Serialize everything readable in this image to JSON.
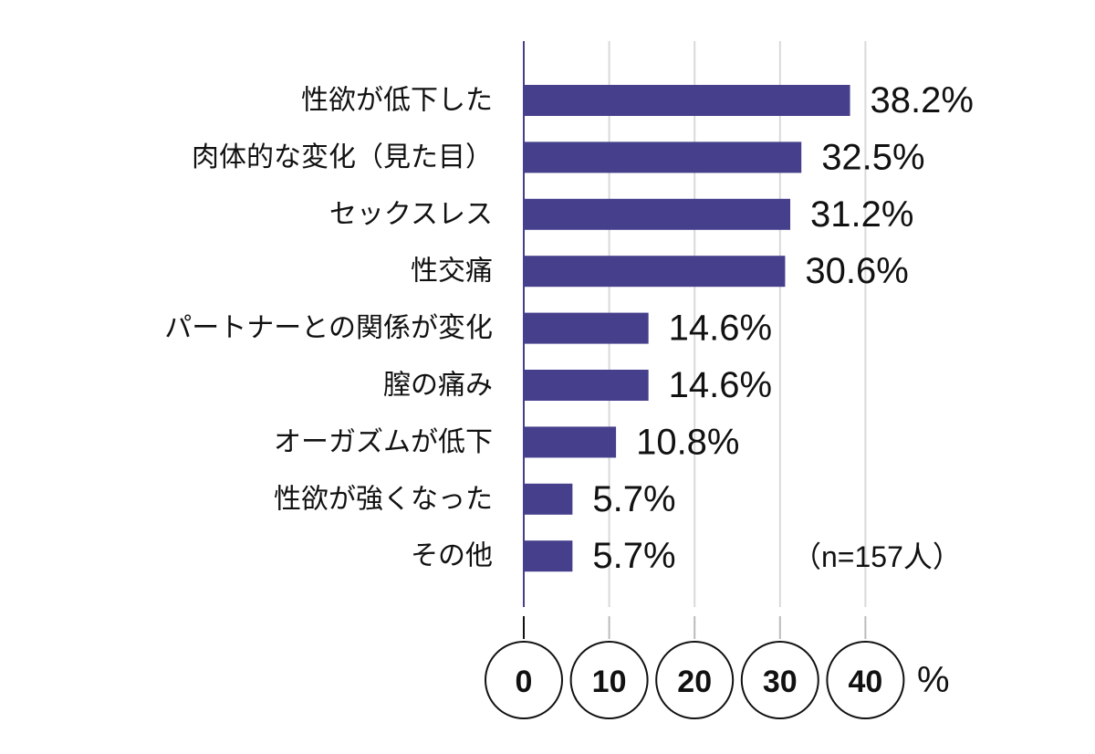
{
  "chart_data": {
    "type": "bar",
    "orientation": "horizontal",
    "categories": [
      "性欲が低下した",
      "肉体的な変化（見た目）",
      "セックスレス",
      "性交痛",
      "パートナーとの関係が変化",
      "膣の痛み",
      "オーガズムが低下",
      "性欲が強くなった",
      "その他"
    ],
    "values": [
      38.2,
      32.5,
      31.2,
      30.6,
      14.6,
      14.6,
      10.8,
      5.7,
      5.7
    ],
    "value_labels": [
      "38.2%",
      "32.5%",
      "31.2%",
      "30.6%",
      "14.6%",
      "14.6%",
      "10.8%",
      "5.7%",
      "5.7%"
    ],
    "xlim": [
      0,
      40
    ],
    "x_ticks": [
      "0",
      "10",
      "20",
      "30",
      "40"
    ],
    "x_unit": "%",
    "annotation": "（n=157人）",
    "grid": true,
    "bar_color": "#453f8c"
  }
}
